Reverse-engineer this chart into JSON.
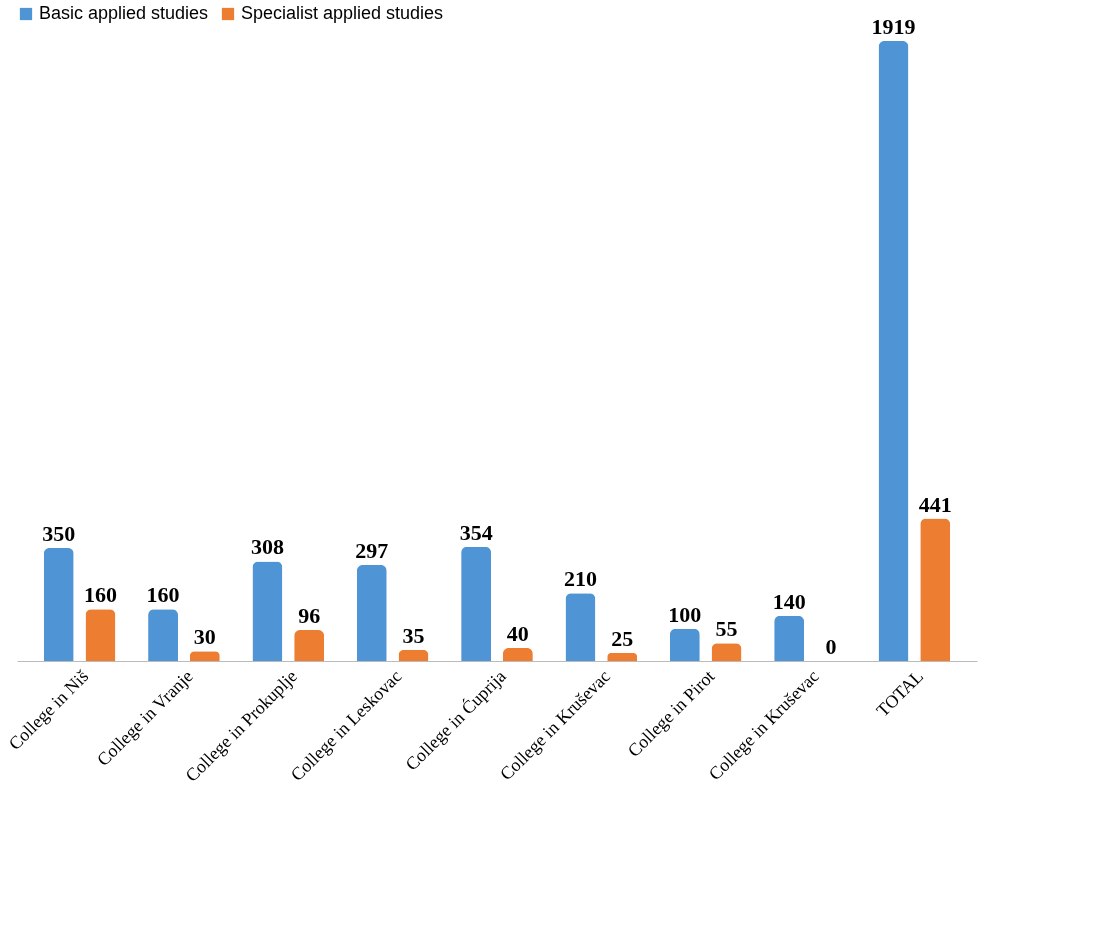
{
  "chart_data": {
    "type": "bar",
    "categories": [
      "College in Niš",
      "College in Vranje",
      "College in Prokuplje",
      "College in Leskovac",
      "College in Ćuprija",
      "College in Kruševac",
      "College in Pirot",
      "College in Kruševac",
      "TOTAL"
    ],
    "series": [
      {
        "name": "Basic applied studies",
        "color": "#4f94d4",
        "values": [
          350,
          160,
          308,
          297,
          354,
          210,
          100,
          140,
          1919
        ]
      },
      {
        "name": "Specialist applied studies",
        "color": "#ed7d31",
        "values": [
          160,
          30,
          96,
          35,
          40,
          25,
          55,
          0,
          441
        ]
      }
    ],
    "data_labels": true,
    "legend": "top",
    "grid": false
  }
}
